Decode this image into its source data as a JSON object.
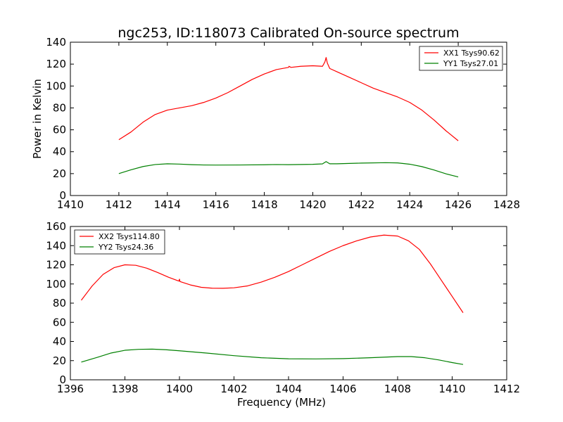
{
  "figure": {
    "title": "ngc253, ID:118073 Calibrated On-source spectrum"
  },
  "chart_data": [
    {
      "type": "line",
      "title": "ngc253, ID:118073 Calibrated On-source spectrum",
      "xlabel": "",
      "ylabel": "Power in Kelvin",
      "xlim": [
        1410,
        1428
      ],
      "ylim": [
        0,
        140
      ],
      "xticks": [
        1410,
        1412,
        1414,
        1416,
        1418,
        1420,
        1422,
        1424,
        1426,
        1428
      ],
      "yticks": [
        0,
        20,
        40,
        60,
        80,
        100,
        120,
        140
      ],
      "grid": false,
      "legend_position": "top-right",
      "series": [
        {
          "name": "XX1 Tsys90.62",
          "color": "#ff0000",
          "x": [
            1412.0,
            1412.5,
            1413.0,
            1413.5,
            1414.0,
            1414.5,
            1415.0,
            1415.5,
            1416.0,
            1416.5,
            1417.0,
            1417.5,
            1418.0,
            1418.5,
            1419.0,
            1419.02,
            1419.1,
            1419.5,
            1420.0,
            1420.4,
            1420.5,
            1420.55,
            1420.6,
            1420.7,
            1421.0,
            1421.5,
            1422.0,
            1422.5,
            1423.0,
            1423.5,
            1424.0,
            1424.5,
            1425.0,
            1425.5,
            1426.0
          ],
          "values": [
            51,
            58,
            67,
            74,
            78,
            80,
            82,
            85,
            89,
            94,
            100,
            106,
            111,
            115,
            117,
            118,
            117,
            118,
            118.5,
            118,
            122,
            126,
            121,
            116,
            113,
            108,
            103,
            98,
            94,
            90,
            85,
            78,
            69,
            59,
            50
          ]
        },
        {
          "name": "YY1 Tsys27.01",
          "color": "#008000",
          "x": [
            1412.0,
            1412.5,
            1413.0,
            1413.5,
            1414.0,
            1414.5,
            1415.0,
            1415.5,
            1416.0,
            1417.0,
            1418.0,
            1418.5,
            1419.0,
            1420.0,
            1420.4,
            1420.55,
            1420.7,
            1421.0,
            1422.0,
            1423.0,
            1423.5,
            1424.0,
            1424.5,
            1425.0,
            1425.5,
            1426.0
          ],
          "values": [
            20,
            23.5,
            26.5,
            28.3,
            29,
            28.7,
            28.2,
            27.9,
            27.8,
            27.9,
            28.1,
            28.3,
            28.2,
            28.5,
            28.9,
            31,
            29,
            29,
            29.6,
            30,
            29.8,
            28.6,
            26.4,
            23.3,
            19.8,
            17
          ]
        }
      ]
    },
    {
      "type": "line",
      "title": "",
      "xlabel": "Frequency (MHz)",
      "ylabel": "",
      "xlim": [
        1396,
        1412
      ],
      "ylim": [
        0,
        160
      ],
      "xticks": [
        1396,
        1398,
        1400,
        1402,
        1404,
        1406,
        1408,
        1410,
        1412
      ],
      "yticks": [
        0,
        20,
        40,
        60,
        80,
        100,
        120,
        140,
        160
      ],
      "grid": false,
      "legend_position": "top-left",
      "series": [
        {
          "name": "XX2 Tsys114.80",
          "color": "#ff0000",
          "x": [
            1396.4,
            1396.8,
            1397.2,
            1397.6,
            1398.0,
            1398.4,
            1398.8,
            1399.2,
            1399.6,
            1399.98,
            1400.0,
            1400.02,
            1400.4,
            1400.8,
            1401.2,
            1401.6,
            1402.0,
            1402.5,
            1403.0,
            1403.5,
            1404.0,
            1404.5,
            1405.0,
            1405.5,
            1406.0,
            1406.5,
            1407.0,
            1407.5,
            1408.0,
            1408.4,
            1408.8,
            1409.2,
            1409.6,
            1410.0,
            1410.4
          ],
          "values": [
            83,
            98,
            110,
            117,
            120,
            119.5,
            116.5,
            112,
            107,
            103,
            105,
            102.5,
            99,
            96.5,
            95.6,
            95.5,
            96,
            98,
            102,
            107,
            113,
            120,
            127,
            134,
            140,
            145,
            149,
            151,
            150,
            145,
            136,
            121,
            104,
            87,
            70
          ]
        },
        {
          "name": "YY2 Tsys24.36",
          "color": "#008000",
          "x": [
            1396.4,
            1397.0,
            1397.5,
            1398.0,
            1398.5,
            1399.0,
            1399.5,
            1400.0,
            1401.0,
            1402.0,
            1403.0,
            1404.0,
            1405.0,
            1406.0,
            1407.0,
            1408.0,
            1408.5,
            1409.0,
            1409.5,
            1410.0,
            1410.4
          ],
          "values": [
            18.5,
            23.5,
            28,
            30.8,
            31.8,
            32,
            31.4,
            30.3,
            27.9,
            25.2,
            23,
            21.9,
            21.8,
            22.1,
            23,
            24.2,
            24.2,
            23,
            20.8,
            18,
            16
          ]
        }
      ]
    }
  ]
}
